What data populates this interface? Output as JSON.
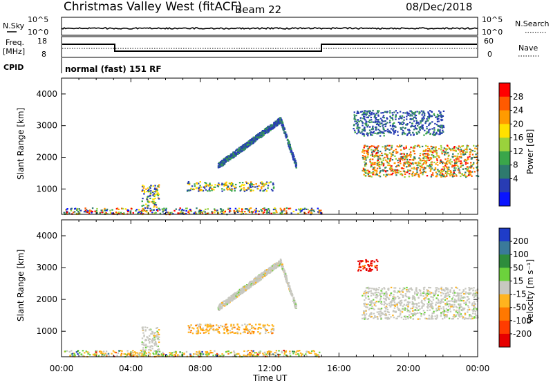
{
  "header": {
    "station": "Christmas Valley West (fitACF)",
    "beam": "Beam 22",
    "date": "08/Dec/2018"
  },
  "status_rows": {
    "nsky_label": "N.Sky",
    "nsky_ticks": [
      "10^5",
      "10^0"
    ],
    "nsearch_label": "N.Search",
    "nsearch_ticks": [
      "10^5",
      "10^0"
    ],
    "freq_label": "Freq.",
    "freq_unit": "[MHz]",
    "freq_ticks": [
      "18",
      "8"
    ],
    "nave_label": "Nave",
    "nave_ticks": [
      "60",
      "0"
    ],
    "cpid_label": "CPID",
    "cpid_text": "normal (fast) 151 RF"
  },
  "chart_data": [
    {
      "type": "heatmap",
      "title": "",
      "xlabel": "",
      "ylabel": "Slant Range [km]",
      "xlim_hours": [
        0,
        24
      ],
      "ylim_km": [
        200,
        4500
      ],
      "yticks": [
        "1000",
        "2000",
        "3000",
        "4000"
      ],
      "colorbar": {
        "label": "Power [dB]",
        "ticks": [
          "28",
          "24",
          "20",
          "16",
          "12",
          "8",
          "4"
        ],
        "colors": [
          "#ff0000",
          "#ff5a00",
          "#ff9b00",
          "#ffe100",
          "#9ad23c",
          "#3aa64a",
          "#2e7a6e",
          "#283cb4",
          "#0a14ff"
        ]
      },
      "regions": [
        {
          "t": [
            0.1,
            15.0
          ],
          "r": [
            220,
            420
          ],
          "level": "mixed"
        },
        {
          "t": [
            4.6,
            5.6
          ],
          "r": [
            400,
            1150
          ],
          "level": "medium"
        },
        {
          "t": [
            7.2,
            12.2
          ],
          "r": [
            950,
            1250
          ],
          "level": "medium"
        },
        {
          "t": [
            9.0,
            13.5
          ],
          "r": [
            1750,
            3200
          ],
          "level": "low"
        },
        {
          "t": [
            17.3,
            24.0
          ],
          "r": [
            1400,
            2400
          ],
          "level": "high"
        },
        {
          "t": [
            16.8,
            22.0
          ],
          "r": [
            2700,
            3500
          ],
          "level": "low"
        }
      ]
    },
    {
      "type": "heatmap",
      "title": "",
      "xlabel": "Time UT",
      "ylabel": "Slant Range [km]",
      "xlim_hours": [
        0,
        24
      ],
      "ylim_km": [
        200,
        4500
      ],
      "yticks": [
        "1000",
        "2000",
        "3000",
        "4000"
      ],
      "xticks": [
        "00:00",
        "04:00",
        "08:00",
        "12:00",
        "16:00",
        "20:00",
        "00:00"
      ],
      "colorbar": {
        "label": "Velocity [m s⁻¹]",
        "ticks": [
          "200",
          "100",
          "50",
          "15",
          "-15",
          "-50",
          "-100",
          "-200"
        ],
        "colors": [
          "#1f3cc8",
          "#3a7a9a",
          "#2e8c3c",
          "#6cd23c",
          "#c8c8c0",
          "#ffb41e",
          "#ff7800",
          "#ff3c00",
          "#e60000"
        ]
      },
      "regions": [
        {
          "t": [
            0.1,
            15.0
          ],
          "r": [
            220,
            420
          ],
          "level": "mixed"
        },
        {
          "t": [
            4.6,
            5.6
          ],
          "r": [
            400,
            1150
          ],
          "level": "grey"
        },
        {
          "t": [
            7.2,
            12.2
          ],
          "r": [
            950,
            1250
          ],
          "level": "orange"
        },
        {
          "t": [
            9.0,
            13.5
          ],
          "r": [
            1750,
            3200
          ],
          "level": "grey"
        },
        {
          "t": [
            17.3,
            24.0
          ],
          "r": [
            1400,
            2400
          ],
          "level": "grey"
        },
        {
          "t": [
            17.0,
            18.2
          ],
          "r": [
            2900,
            3300
          ],
          "level": "red"
        }
      ]
    }
  ]
}
